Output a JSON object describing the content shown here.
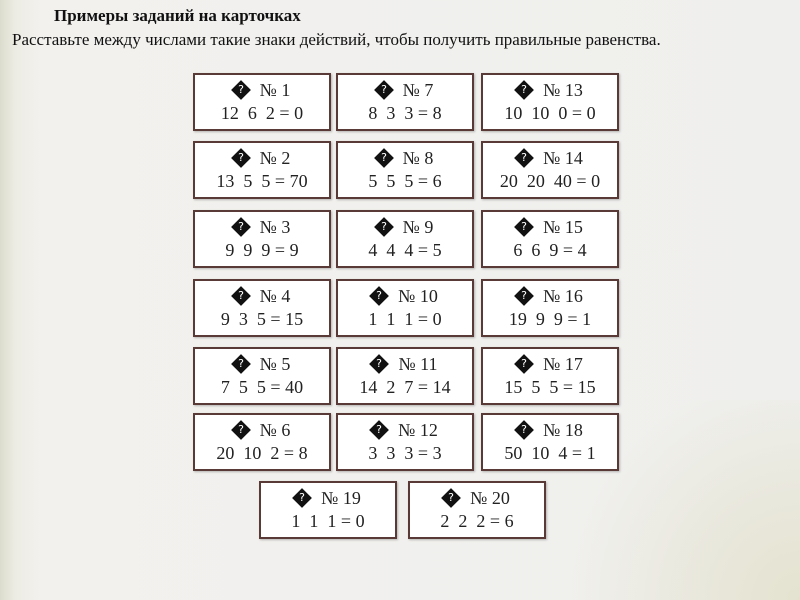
{
  "title": "Примеры заданий на карточках",
  "instruction": "Расставьте между числами такие знаки действий, чтобы получить правильные равенства.",
  "cards": [
    {
      "num": "№ 1",
      "expr": "12  6  2 = 0"
    },
    {
      "num": "№ 2",
      "expr": "13  5  5 = 70"
    },
    {
      "num": "№ 3",
      "expr": "9  9  9 = 9"
    },
    {
      "num": "№ 4",
      "expr": "9  3  5 = 15"
    },
    {
      "num": "№ 5",
      "expr": "7  5  5 = 40"
    },
    {
      "num": "№ 6",
      "expr": "20  10  2 = 8"
    },
    {
      "num": "№ 7",
      "expr": "8  3  3 = 8"
    },
    {
      "num": "№ 8",
      "expr": "5  5  5 = 6"
    },
    {
      "num": "№ 9",
      "expr": "4  4  4 = 5"
    },
    {
      "num": "№ 10",
      "expr": "1  1  1 = 0"
    },
    {
      "num": "№ 11",
      "expr": "14  2  7 = 14"
    },
    {
      "num": "№ 12",
      "expr": "3  3  3 = 3"
    },
    {
      "num": "№ 13",
      "expr": "10  10  0 = 0"
    },
    {
      "num": "№ 14",
      "expr": "20  20  40 = 0"
    },
    {
      "num": "№ 15",
      "expr": "6  6  9 = 4"
    },
    {
      "num": "№ 16",
      "expr": "19  9  9 = 1"
    },
    {
      "num": "№ 17",
      "expr": "15  5  5 = 15"
    },
    {
      "num": "№ 18",
      "expr": "50  10  4 = 1"
    },
    {
      "num": "№ 19",
      "expr": "1  1  1 = 0"
    },
    {
      "num": "№ 20",
      "expr": "2  2  2 = 6"
    }
  ],
  "icon": "question-diamond-icon",
  "icon_glyph": "?"
}
